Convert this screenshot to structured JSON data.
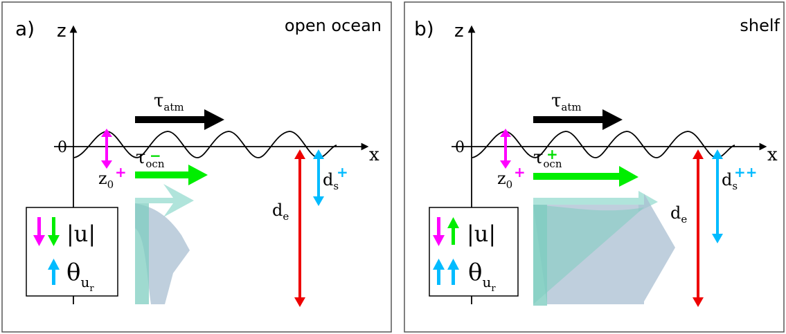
{
  "panels": [
    {
      "letter": "a)",
      "title": "open ocean",
      "z_label": "z",
      "x_label": "x",
      "zero_label": "0",
      "tau_atm": {
        "symbol": "τ",
        "sub": "atm"
      },
      "tau_ocn": {
        "symbol": "τ",
        "sub": "ocn",
        "sup": "−",
        "sup_color": "#00dd00"
      },
      "z0": {
        "main": "z",
        "sub": "0",
        "sup": "+",
        "sup_color": "#ff00ff"
      },
      "ds": {
        "main": "d",
        "sub": "s",
        "sup": "+",
        "sup_color": "#00bbff"
      },
      "de": {
        "main": "d",
        "sub": "e"
      },
      "legend": {
        "u_label": "|u|",
        "theta_label": "θ",
        "theta_sub": "u",
        "theta_subsub": "r"
      }
    },
    {
      "letter": "b)",
      "title": "shelf",
      "z_label": "z",
      "x_label": "x",
      "zero_label": "0",
      "tau_atm": {
        "symbol": "τ",
        "sub": "atm"
      },
      "tau_ocn": {
        "symbol": "τ",
        "sub": "ocn",
        "sup": "+",
        "sup_color": "#00dd00"
      },
      "z0": {
        "main": "z",
        "sub": "0",
        "sup": "+",
        "sup_color": "#ff00ff"
      },
      "ds": {
        "main": "d",
        "sub": "s",
        "sup": "++",
        "sup_color": "#00bbff"
      },
      "de": {
        "main": "d",
        "sub": "e"
      },
      "legend": {
        "u_label": "|u|",
        "theta_label": "θ",
        "theta_sub": "u",
        "theta_subsub": "r"
      }
    }
  ],
  "colors": {
    "magenta": "#ff00ff",
    "green": "#00ee00",
    "cyan": "#00bbff",
    "red": "#ee0000",
    "black": "#000000",
    "teal_arrow": "#8fd9cc",
    "slate_arrow": "#a9bfd1"
  }
}
